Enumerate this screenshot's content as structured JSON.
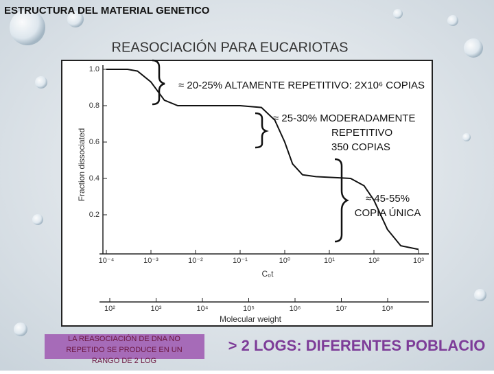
{
  "slide": {
    "header": "ESTRUCTURA DEL MATERIAL GENETICO",
    "title": "REASOCIACIÓN PARA EUCARIOTAS",
    "note": [
      "LA REASOCIACIÓN DE DNA NO",
      "REPETIDO SE PRODUCE EN UN",
      "RANGO DE 2 LOG"
    ],
    "banner": "> 2 LOGS: DIFERENTES POBLACIO"
  },
  "chart_data": {
    "type": "line",
    "xscale": "log",
    "color": "#111111",
    "x": [
      0.0001,
      0.0003,
      0.0005,
      0.001,
      0.002,
      0.004,
      0.1,
      0.3,
      0.6,
      1,
      1.5,
      2.5,
      5,
      30,
      60,
      100,
      200,
      400,
      1000
    ],
    "values": [
      1.0,
      1.0,
      0.99,
      0.93,
      0.83,
      0.8,
      0.8,
      0.79,
      0.72,
      0.6,
      0.48,
      0.42,
      0.41,
      0.4,
      0.36,
      0.28,
      0.12,
      0.03,
      0.01
    ],
    "xlim": [
      0.0001,
      1000
    ],
    "xticks": [
      {
        "value": 0.0001,
        "label": "10⁻⁴"
      },
      {
        "value": 0.001,
        "label": "10⁻³"
      },
      {
        "value": 0.01,
        "label": "10⁻²"
      },
      {
        "value": 0.1,
        "label": "10⁻¹"
      },
      {
        "value": 1,
        "label": "10⁰"
      },
      {
        "value": 10,
        "label": "10¹"
      },
      {
        "value": 100,
        "label": "10²"
      },
      {
        "value": 1000,
        "label": "10³"
      }
    ],
    "ylim": [
      0,
      1
    ],
    "yticks": [
      0.2,
      0.4,
      0.6,
      0.8,
      {
        "value": 1,
        "label": "1.0"
      }
    ],
    "xlabel": "C₀t",
    "ylabel": "Fraction dissociated",
    "mw_label": "Molecular weight",
    "mw_lim": [
      100,
      100000000
    ],
    "mw_ticks": [
      {
        "value": 100,
        "label": "10²"
      },
      {
        "value": 1000,
        "label": "10³"
      },
      {
        "value": 10000,
        "label": "10⁴"
      },
      {
        "value": 100000,
        "label": "10⁵"
      },
      {
        "value": 1000000,
        "label": "10⁶"
      },
      {
        "value": 10000000,
        "label": "10⁷"
      },
      {
        "value": 100000000,
        "label": "10⁸"
      }
    ],
    "annotations": [
      [
        "≈ 20-25%  ALTAMENTE REPETITIVO: 2X10⁶ COPIAS"
      ],
      [
        "≈ 25-30%  MODERADAMENTE",
        "REPETITIVO",
        "350 COPIAS"
      ],
      [
        "≈ 45-55%",
        "COPIA ÚNICA"
      ]
    ]
  }
}
